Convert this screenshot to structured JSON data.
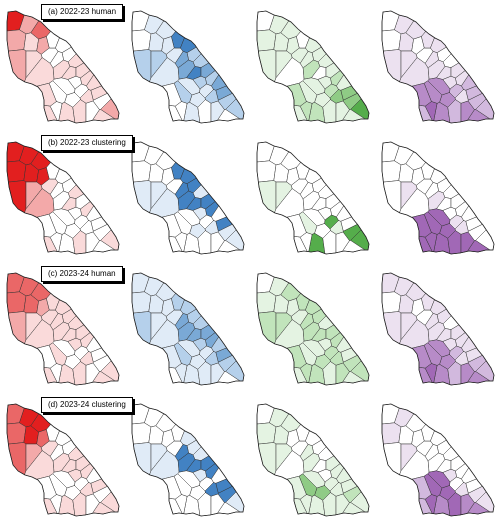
{
  "rows": [
    {
      "label": "(a) 2022-23 human",
      "maps": [
        {
          "palette": "red",
          "levels": [
            4,
            2,
            3,
            2,
            1,
            2,
            2,
            1,
            1,
            0,
            0,
            0,
            0,
            0,
            1,
            1,
            1,
            1,
            1,
            0,
            1,
            1,
            1,
            0,
            2,
            0,
            0,
            0,
            0,
            1,
            1,
            0,
            0,
            1,
            1,
            1
          ]
        },
        {
          "palette": "blue",
          "levels": [
            0,
            1,
            1,
            0,
            1,
            1,
            2,
            2,
            1,
            1,
            4,
            4,
            2,
            3,
            3,
            2,
            4,
            3,
            2,
            2,
            3,
            3,
            2,
            2,
            2,
            1,
            1,
            2,
            1,
            1,
            0,
            1,
            0,
            0,
            0,
            0
          ]
        },
        {
          "palette": "green",
          "levels": [
            0,
            1,
            1,
            1,
            1,
            1,
            1,
            1,
            0,
            1,
            0,
            1,
            1,
            1,
            2,
            1,
            0,
            1,
            2,
            1,
            1,
            3,
            3,
            3,
            4,
            2,
            1,
            1,
            1,
            2,
            1,
            1,
            2,
            1,
            2,
            1
          ]
        },
        {
          "palette": "purple",
          "levels": [
            0,
            1,
            1,
            0,
            1,
            0,
            1,
            1,
            1,
            0,
            1,
            1,
            0,
            1,
            1,
            0,
            1,
            1,
            1,
            1,
            2,
            2,
            1,
            2,
            2,
            2,
            3,
            3,
            3,
            3,
            2,
            3,
            4,
            3,
            3,
            2
          ]
        }
      ]
    },
    {
      "label": "(b) 2022-23 clustering",
      "maps": [
        {
          "palette": "red",
          "levels": [
            4,
            4,
            4,
            4,
            4,
            4,
            4,
            2,
            2,
            1,
            0,
            0,
            0,
            0,
            0,
            1,
            1,
            0,
            1,
            0,
            0,
            0,
            0,
            0,
            1,
            0,
            0,
            0,
            0,
            0,
            1,
            0,
            0,
            0,
            0,
            1
          ]
        },
        {
          "palette": "blue",
          "levels": [
            0,
            0,
            0,
            0,
            0,
            0,
            1,
            1,
            1,
            0,
            4,
            4,
            4,
            4,
            4,
            1,
            4,
            4,
            4,
            1,
            0,
            4,
            1,
            1,
            1,
            0,
            0,
            0,
            1,
            0,
            0,
            0,
            0,
            0,
            0,
            0
          ]
        },
        {
          "palette": "green",
          "levels": [
            0,
            0,
            0,
            0,
            0,
            0,
            1,
            1,
            0,
            0,
            0,
            0,
            0,
            0,
            0,
            0,
            0,
            0,
            0,
            0,
            0,
            0,
            1,
            4,
            4,
            4,
            0,
            1,
            0,
            4,
            0,
            0,
            0,
            0,
            0,
            0
          ]
        },
        {
          "palette": "purple",
          "levels": [
            0,
            0,
            0,
            0,
            0,
            0,
            0,
            1,
            0,
            0,
            0,
            0,
            0,
            0,
            1,
            0,
            0,
            0,
            0,
            0,
            0,
            0,
            1,
            0,
            0,
            1,
            4,
            4,
            4,
            4,
            4,
            4,
            4,
            4,
            4,
            4
          ]
        }
      ]
    },
    {
      "label": "(c) 2023-24 human",
      "maps": [
        {
          "palette": "red",
          "levels": [
            3,
            3,
            3,
            3,
            3,
            2,
            2,
            1,
            1,
            1,
            1,
            1,
            1,
            1,
            1,
            1,
            1,
            1,
            1,
            1,
            0,
            0,
            1,
            0,
            1,
            0,
            0,
            1,
            0,
            1,
            1,
            0,
            0,
            1,
            0,
            1
          ]
        },
        {
          "palette": "blue",
          "levels": [
            1,
            1,
            1,
            1,
            1,
            1,
            2,
            1,
            1,
            1,
            2,
            2,
            2,
            3,
            3,
            2,
            3,
            3,
            3,
            2,
            2,
            3,
            2,
            2,
            2,
            1,
            1,
            2,
            1,
            1,
            1,
            1,
            1,
            0,
            1,
            0
          ]
        },
        {
          "palette": "green",
          "levels": [
            0,
            1,
            2,
            1,
            1,
            1,
            2,
            2,
            1,
            1,
            2,
            2,
            2,
            2,
            2,
            1,
            2,
            2,
            2,
            1,
            1,
            1,
            2,
            2,
            2,
            2,
            1,
            1,
            2,
            2,
            1,
            2,
            2,
            1,
            2,
            1
          ]
        },
        {
          "palette": "purple",
          "levels": [
            1,
            1,
            1,
            0,
            1,
            0,
            1,
            1,
            1,
            0,
            1,
            1,
            1,
            1,
            1,
            0,
            1,
            1,
            1,
            1,
            1,
            1,
            1,
            2,
            2,
            2,
            3,
            3,
            3,
            3,
            2,
            3,
            4,
            3,
            3,
            3
          ]
        }
      ]
    },
    {
      "label": "(d) 2023-24 clustering",
      "maps": [
        {
          "palette": "red",
          "levels": [
            3,
            4,
            4,
            3,
            4,
            3,
            3,
            2,
            1,
            1,
            0,
            0,
            0,
            0,
            1,
            1,
            1,
            1,
            1,
            1,
            0,
            1,
            1,
            0,
            1,
            0,
            0,
            0,
            0,
            1,
            1,
            0,
            0,
            1,
            0,
            1
          ]
        },
        {
          "palette": "blue",
          "levels": [
            0,
            0,
            0,
            0,
            0,
            0,
            1,
            1,
            1,
            0,
            0,
            1,
            1,
            4,
            4,
            1,
            4,
            4,
            4,
            1,
            0,
            4,
            4,
            4,
            1,
            0,
            0,
            0,
            0,
            0,
            0,
            0,
            0,
            0,
            0,
            0
          ]
        },
        {
          "palette": "green",
          "levels": [
            0,
            1,
            1,
            1,
            1,
            0,
            1,
            1,
            0,
            0,
            0,
            0,
            0,
            1,
            1,
            0,
            0,
            1,
            1,
            0,
            1,
            1,
            1,
            2,
            1,
            1,
            1,
            3,
            3,
            1,
            1,
            1,
            1,
            1,
            1,
            1
          ]
        },
        {
          "palette": "purple",
          "levels": [
            0,
            1,
            0,
            1,
            0,
            0,
            0,
            1,
            0,
            0,
            0,
            0,
            0,
            0,
            0,
            0,
            0,
            0,
            0,
            1,
            0,
            0,
            1,
            1,
            1,
            0,
            4,
            4,
            4,
            3,
            4,
            3,
            4,
            3,
            2,
            2
          ]
        }
      ]
    }
  ],
  "palettes": {
    "red": [
      "#ffffff",
      "#fadada",
      "#f3a9a9",
      "#ea6767",
      "#e21f1f"
    ],
    "blue": [
      "#ffffff",
      "#e0ebf7",
      "#b5d0eb",
      "#7aa9d6",
      "#4282c3"
    ],
    "green": [
      "#ffffff",
      "#e4f3e2",
      "#c1e4bb",
      "#8fcb85",
      "#55ad4b"
    ],
    "purple": [
      "#ffffff",
      "#ece1f0",
      "#d2b9de",
      "#b78bc8",
      "#a168b6"
    ]
  },
  "stroke_color": "#333333"
}
